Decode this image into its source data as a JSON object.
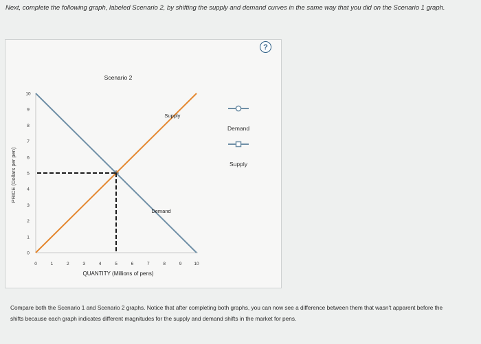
{
  "instruction": "Next, complete the following graph, labeled Scenario 2, by shifting the supply and demand curves in the same way that you did on the Scenario 1 graph.",
  "help": {
    "label": "?"
  },
  "legend": {
    "demand_label": "Demand",
    "supply_label": "Supply"
  },
  "summary": "Compare both the Scenario 1 and Scenario 2 graphs. Notice that after completing both graphs, you can now see a difference between them that wasn't apparent before the shifts because each graph indicates different magnitudes for the supply and demand shifts in the market for pens.",
  "colors": {
    "demand": "#6f8fa6",
    "supply": "#e4872f",
    "equilibrium": "#1a1a1a"
  },
  "chart_data": {
    "type": "line",
    "title": "Scenario 2",
    "xlabel": "QUANTITY (Millions of pens)",
    "ylabel": "PRICE (Dollars per pen)",
    "xlim": [
      0,
      10
    ],
    "ylim": [
      0,
      10
    ],
    "xticks": [
      0,
      1,
      2,
      3,
      4,
      5,
      6,
      7,
      8,
      9,
      10
    ],
    "yticks": [
      0,
      1,
      2,
      3,
      4,
      5,
      6,
      7,
      8,
      9,
      10
    ],
    "series": [
      {
        "name": "Demand",
        "points": [
          [
            0,
            10
          ],
          [
            10,
            0
          ]
        ],
        "label": "Demand",
        "label_at": [
          7.8,
          2.5
        ]
      },
      {
        "name": "Supply",
        "points": [
          [
            0,
            0
          ],
          [
            10,
            10
          ]
        ],
        "label": "Supply",
        "label_at": [
          8.5,
          8.5
        ]
      }
    ],
    "equilibrium": {
      "x": 5,
      "y": 5
    }
  }
}
